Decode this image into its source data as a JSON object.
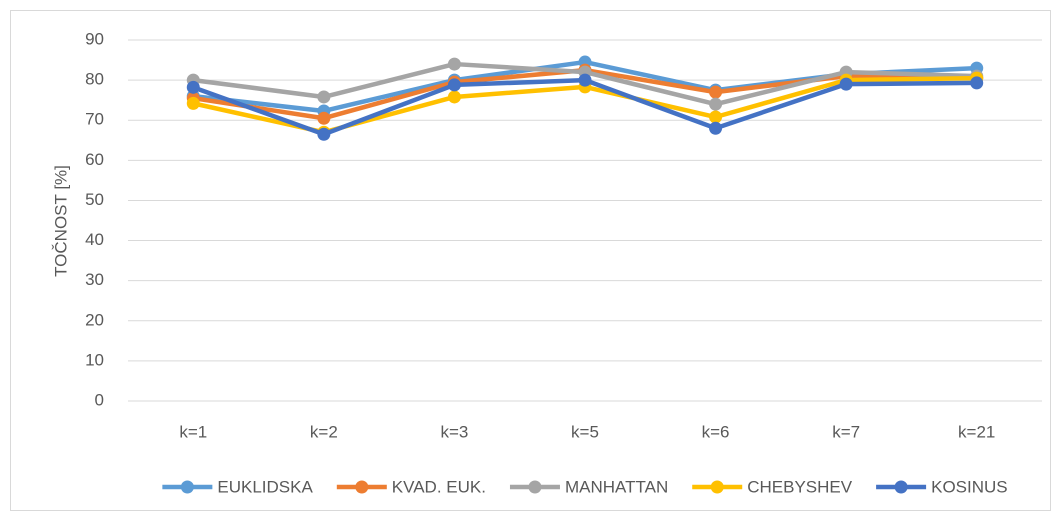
{
  "chart_data": {
    "type": "line",
    "ylabel": "TOČNOST [%]",
    "categories": [
      "k=1",
      "k=2",
      "k=3",
      "k=5",
      "k=6",
      "k=7",
      "k=21"
    ],
    "series": [
      {
        "name": "EUKLIDSKA",
        "color": "#5b9bd5",
        "values": [
          76,
          72.3,
          80,
          84.5,
          77.5,
          81.5,
          83
        ]
      },
      {
        "name": "KVAD. EUK.",
        "color": "#ed7d31",
        "values": [
          75.5,
          70.5,
          79.5,
          82.5,
          77,
          81,
          80.5
        ]
      },
      {
        "name": "MANHATTAN",
        "color": "#a5a5a5",
        "values": [
          80,
          75.8,
          84,
          82,
          74,
          82,
          81
        ]
      },
      {
        "name": "CHEBYSHEV",
        "color": "#ffc000",
        "values": [
          74.2,
          67,
          75.8,
          78.3,
          70.8,
          80,
          80.5
        ]
      },
      {
        "name": "KOSINUS",
        "color": "#4472c4",
        "values": [
          78.2,
          66.5,
          78.8,
          80,
          68,
          79,
          79.3
        ]
      }
    ],
    "ylim": [
      0,
      90
    ],
    "yticks": [
      0,
      10,
      20,
      30,
      40,
      50,
      60,
      70,
      80,
      90
    ],
    "grid": true,
    "legend": "bottom"
  }
}
